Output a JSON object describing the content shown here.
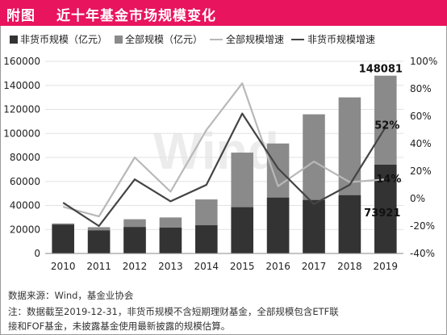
{
  "header": {
    "tag": "附图",
    "title": "近十年基金市场规模变化"
  },
  "watermark": "Wind",
  "legend": {
    "items": [
      {
        "label": "非货币规模（亿元）",
        "color": "#333333",
        "kind": "bar"
      },
      {
        "label": "全部规模（亿元）",
        "color": "#8a8a8a",
        "kind": "bar"
      },
      {
        "label": "全部规模增速",
        "color": "#b8b8b8",
        "kind": "line"
      },
      {
        "label": "非货币规模增速",
        "color": "#444444",
        "kind": "line"
      }
    ]
  },
  "footer": {
    "source": "数据来源：Wind，基金业协会",
    "note_line1": "注：数据截至2019-12-31，非货币规模不含短期理财基金，全部规模包含ETF联",
    "note_line2": "接和FOF基金，未披露基金使用最新披露的规模估算。"
  },
  "colors": {
    "brand": "#e8145d",
    "total_bar": "#8a8a8a",
    "nonmoney_bar": "#333333",
    "total_growth_line": "#b8b8b8",
    "nonmoney_growth_line": "#444444"
  },
  "chart_data": {
    "type": "bar",
    "categories": [
      "2010",
      "2011",
      "2012",
      "2013",
      "2014",
      "2015",
      "2016",
      "2017",
      "2018",
      "2019"
    ],
    "series": [
      {
        "name": "全部规模（亿元）",
        "type": "bar",
        "axis": "left",
        "values": [
          25000,
          21900,
          28500,
          30000,
          45000,
          84000,
          91600,
          115900,
          130000,
          148081
        ]
      },
      {
        "name": "非货币规模（亿元）",
        "type": "bar",
        "axis": "left",
        "values": [
          24000,
          19200,
          22000,
          21500,
          23500,
          38500,
          46500,
          44500,
          48500,
          73921
        ]
      },
      {
        "name": "全部规模增速",
        "type": "line",
        "axis": "right",
        "values": [
          -6,
          -13,
          30,
          5,
          50,
          84,
          9,
          27,
          12,
          14
        ]
      },
      {
        "name": "非货币规模增速",
        "type": "line",
        "axis": "right",
        "values": [
          -3,
          -20,
          14,
          -2,
          10,
          62,
          22,
          -4,
          10,
          52
        ]
      }
    ],
    "data_labels": {
      "total_2019": "148081",
      "nonmoney_2019": "73921",
      "nonmoney_growth_2019": "52%",
      "total_growth_2019": "14%"
    },
    "y_left": {
      "min": 0,
      "max": 160000,
      "ticks": [
        0,
        20000,
        40000,
        60000,
        80000,
        100000,
        120000,
        140000,
        160000
      ]
    },
    "y_right": {
      "min": -40,
      "max": 100,
      "ticks": [
        -40,
        -20,
        0,
        20,
        40,
        60,
        80,
        100
      ],
      "unit": "%"
    },
    "grid": true,
    "legend_position": "top"
  }
}
